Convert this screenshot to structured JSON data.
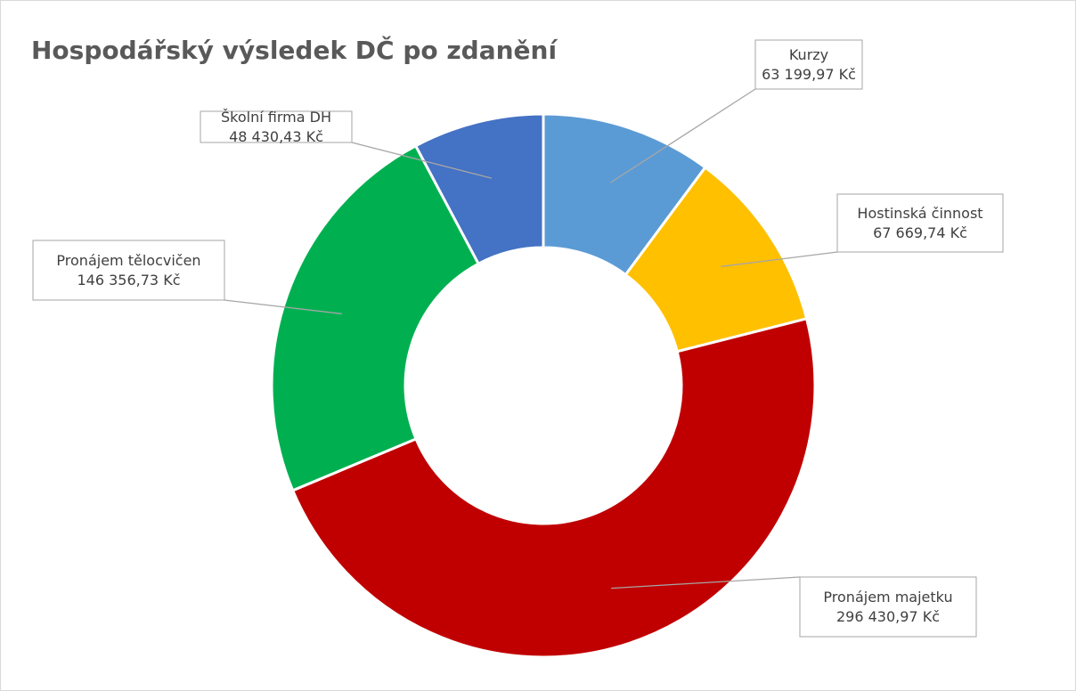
{
  "chart_data": {
    "type": "donut",
    "title": "Hospodářský výsledek DČ po zdanění",
    "categories": [
      "Kurzy",
      "Hostinská činnost",
      "Pronájem majetku",
      "Pronájem tělocvičen",
      "Školní firma DH"
    ],
    "values": [
      63199.97,
      67669.74,
      296430.97,
      146356.73,
      48430.43
    ],
    "value_labels": [
      "63 199,97 Kč",
      "67 669,74 Kč",
      "296 430,97 Kč",
      "146 356,73 Kč",
      "48 430,43 Kč"
    ],
    "colors": [
      "#5b9bd5",
      "#ffc000",
      "#c00000",
      "#00b050",
      "#4472c4"
    ]
  }
}
